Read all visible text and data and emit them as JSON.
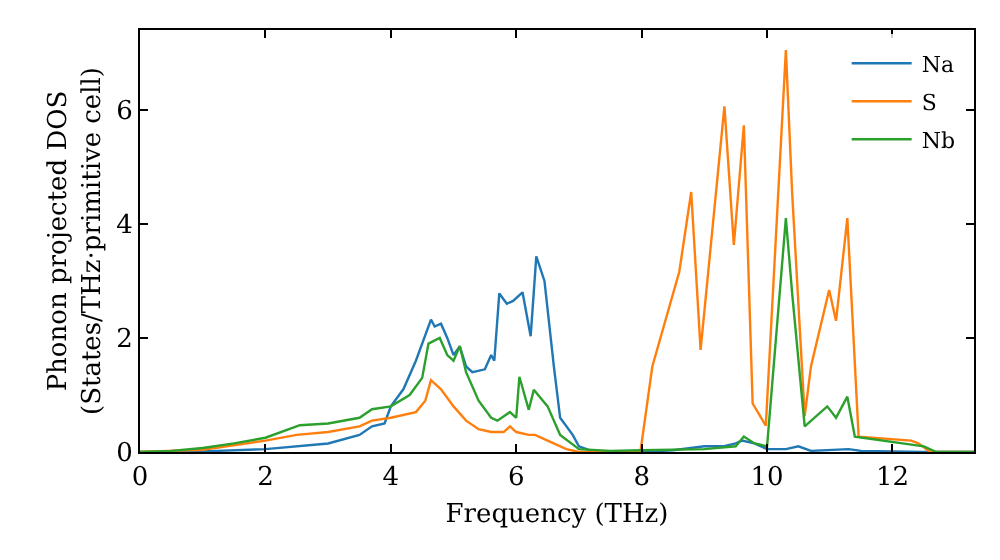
{
  "chart_data": {
    "type": "line",
    "xlabel": "Frequency (THz)",
    "ylabel": "Phonon projected DOS\n(States/THz·primitive cell)",
    "xlim": [
      0,
      13.3
    ],
    "ylim": [
      0,
      7.4
    ],
    "xticks": [
      0,
      2,
      4,
      6,
      8,
      10,
      12
    ],
    "yticks": [
      0,
      2,
      4,
      6
    ],
    "legend": "top right",
    "series": [
      {
        "name": "Na",
        "color": "#1f77b4",
        "x": [
          0,
          1,
          2,
          3,
          3.5,
          3.7,
          3.9,
          4.0,
          4.2,
          4.4,
          4.64,
          4.7,
          4.8,
          4.9,
          5.0,
          5.1,
          5.2,
          5.3,
          5.5,
          5.6,
          5.65,
          5.73,
          5.85,
          5.95,
          6.1,
          6.23,
          6.32,
          6.45,
          6.6,
          6.7,
          6.9,
          7.0,
          7.2,
          8,
          8.5,
          9,
          9.3,
          9.5,
          9.6,
          9.8,
          10.0,
          10.3,
          10.5,
          10.7,
          11.3,
          11.5,
          12.5,
          13.3
        ],
        "values": [
          0,
          0.01,
          0.05,
          0.15,
          0.3,
          0.45,
          0.5,
          0.8,
          1.1,
          1.6,
          2.32,
          2.2,
          2.25,
          2.0,
          1.7,
          1.85,
          1.5,
          1.4,
          1.45,
          1.7,
          1.6,
          2.78,
          2.6,
          2.65,
          2.8,
          2.03,
          3.43,
          3.0,
          1.5,
          0.6,
          0.3,
          0.1,
          0.02,
          0,
          0.03,
          0.1,
          0.1,
          0.15,
          0.2,
          0.15,
          0.05,
          0.05,
          0.1,
          0.02,
          0.05,
          0.02,
          0,
          0
        ]
      },
      {
        "name": "S",
        "color": "#ff7f0e",
        "x": [
          0,
          1,
          2,
          2.5,
          3,
          3.5,
          3.7,
          4,
          4.4,
          4.55,
          4.64,
          4.8,
          5.0,
          5.2,
          5.4,
          5.6,
          5.8,
          5.9,
          6.0,
          6.2,
          6.3,
          6.5,
          6.8,
          7.0,
          7.98,
          8.17,
          8.6,
          8.79,
          8.94,
          9.32,
          9.47,
          9.63,
          9.77,
          9.98,
          10.3,
          10.4,
          10.6,
          10.7,
          10.99,
          11.1,
          11.28,
          11.46,
          12.3,
          12.42,
          12.6,
          13.3
        ],
        "values": [
          0,
          0.04,
          0.2,
          0.3,
          0.35,
          0.45,
          0.55,
          0.6,
          0.7,
          0.9,
          1.26,
          1.1,
          0.8,
          0.55,
          0.4,
          0.35,
          0.35,
          0.45,
          0.35,
          0.3,
          0.3,
          0.2,
          0.05,
          0,
          0,
          1.5,
          3.16,
          4.56,
          1.79,
          6.06,
          3.63,
          5.73,
          0.85,
          0.46,
          7.05,
          4.54,
          0.63,
          1.5,
          2.84,
          2.3,
          4.1,
          0.27,
          0.2,
          0.15,
          0,
          0
        ]
      },
      {
        "name": "Nb",
        "color": "#2ca02c",
        "x": [
          0,
          0.5,
          1,
          1.5,
          2,
          2.55,
          3,
          3.5,
          3.7,
          4.0,
          4.3,
          4.5,
          4.6,
          4.78,
          4.9,
          5.0,
          5.1,
          5.2,
          5.4,
          5.6,
          5.7,
          5.9,
          6.0,
          6.05,
          6.2,
          6.28,
          6.5,
          6.7,
          7.0,
          7.5,
          8,
          9,
          9.5,
          9.63,
          9.8,
          10.0,
          10.3,
          10.4,
          10.6,
          10.96,
          11.1,
          11.28,
          11.4,
          12.5,
          12.7,
          13.3
        ],
        "values": [
          0,
          0.02,
          0.07,
          0.15,
          0.25,
          0.47,
          0.5,
          0.6,
          0.75,
          0.8,
          1.0,
          1.3,
          1.9,
          2.0,
          1.7,
          1.6,
          1.86,
          1.4,
          0.9,
          0.6,
          0.55,
          0.7,
          0.6,
          1.32,
          0.74,
          1.09,
          0.8,
          0.3,
          0.05,
          0.02,
          0.03,
          0.05,
          0.1,
          0.27,
          0.15,
          0.1,
          4.1,
          2.78,
          0.45,
          0.8,
          0.6,
          0.97,
          0.27,
          0.1,
          0,
          0
        ]
      }
    ]
  }
}
